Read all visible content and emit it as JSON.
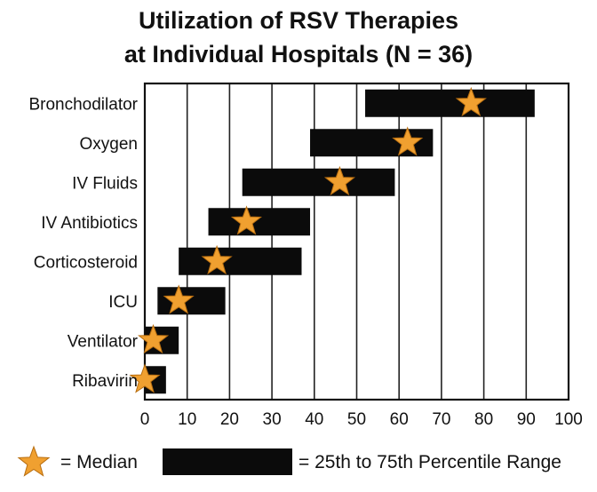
{
  "chart_data": {
    "type": "range-bar",
    "title_lines": [
      "Utilization of RSV Therapies",
      "at Individual Hospitals (N = 36)"
    ],
    "categories": [
      "Bronchodilator",
      "Oxygen",
      "IV Fluids",
      "IV Antibiotics",
      "Corticosteroid",
      "ICU",
      "Ventilator",
      "Ribavirin"
    ],
    "p25": [
      52,
      39,
      23,
      15,
      8,
      3,
      0,
      0
    ],
    "p75": [
      92,
      68,
      59,
      39,
      37,
      19,
      8,
      5
    ],
    "median": [
      77,
      62,
      46,
      24,
      17,
      8,
      2,
      0
    ],
    "xlim": [
      0,
      100
    ],
    "xticks": [
      "0",
      "10",
      "20",
      "30",
      "40",
      "50",
      "60",
      "70",
      "80",
      "90",
      "100"
    ],
    "grid": true,
    "legend": {
      "median_label": "= Median",
      "range_label": "= 25th to 75th Percentile Range",
      "placement": "bottom"
    },
    "colors": {
      "bar": "#0b0b0b",
      "star": "#f0a030",
      "star_stroke": "#b86e10",
      "grid": "#222222"
    }
  }
}
